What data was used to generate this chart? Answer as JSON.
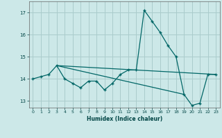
{
  "title": "",
  "xlabel": "Humidex (Indice chaleur)",
  "ylabel": "",
  "background_color": "#cce8e8",
  "grid_color": "#aacccc",
  "line_color": "#006666",
  "xlim": [
    -0.5,
    23.5
  ],
  "ylim": [
    12.7,
    17.5
  ],
  "yticks": [
    13,
    14,
    15,
    16,
    17
  ],
  "xticks": [
    0,
    1,
    2,
    3,
    4,
    5,
    6,
    7,
    8,
    9,
    10,
    11,
    12,
    13,
    14,
    15,
    16,
    17,
    18,
    19,
    20,
    21,
    22,
    23
  ],
  "main_series_x": [
    0,
    1,
    2,
    3,
    4,
    5,
    6,
    7,
    8,
    9,
    10,
    11,
    12,
    13,
    14,
    15,
    16,
    17,
    18,
    19,
    20,
    21,
    22,
    23
  ],
  "main_series_y": [
    14.0,
    14.1,
    14.2,
    14.6,
    14.0,
    13.8,
    13.6,
    13.9,
    13.9,
    13.5,
    13.8,
    14.2,
    14.4,
    14.4,
    17.1,
    16.6,
    16.1,
    15.5,
    15.0,
    13.3,
    12.8,
    12.9,
    14.2,
    14.2
  ],
  "line1_x": [
    3,
    23
  ],
  "line1_y": [
    14.6,
    14.2
  ],
  "line2_x": [
    3,
    19
  ],
  "line2_y": [
    14.6,
    13.3
  ]
}
